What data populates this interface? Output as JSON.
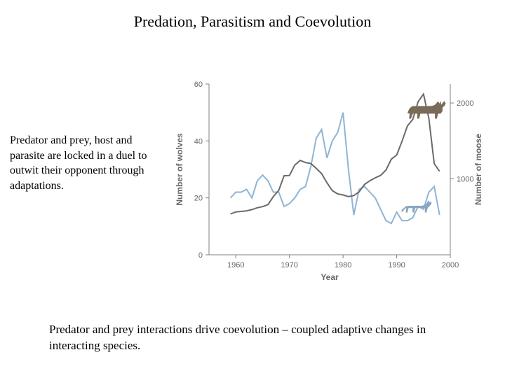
{
  "title": "Predation, Parasitism and Coevolution",
  "side_text": "Predator and prey, host and parasite are locked in a duel to outwit their opponent through adaptations.",
  "bottom_text": "Predator and prey interactions drive coevolution – coupled adaptive changes in interacting species.",
  "chart": {
    "type": "line",
    "background_color": "#ffffff",
    "grid_color": "#d0d0d0",
    "x_axis": {
      "label": "Year",
      "xlim": [
        1955,
        2000
      ],
      "ticks": [
        1960,
        1970,
        1980,
        1990,
        2000
      ],
      "tick_labels": [
        "1960",
        "1970",
        "1980",
        "1990",
        "2000"
      ],
      "label_fontsize": 12,
      "tick_fontsize": 11
    },
    "y_axis_left": {
      "label": "Number of wolves",
      "ylim": [
        0,
        60
      ],
      "ticks": [
        0,
        20,
        40,
        60
      ],
      "tick_labels": [
        "0",
        "20",
        "40",
        "60"
      ],
      "label_fontsize": 12,
      "tick_fontsize": 11
    },
    "y_axis_right": {
      "label": "Number of moose",
      "ylim": [
        0,
        2250
      ],
      "ticks": [
        1000,
        2000
      ],
      "tick_labels": [
        "1000",
        "2000"
      ],
      "label_fontsize": 12,
      "tick_fontsize": 11
    },
    "series": [
      {
        "name": "wolves",
        "axis": "left",
        "color": "#8fb4d5",
        "line_width": 2,
        "x": [
          1959,
          1960,
          1961,
          1962,
          1963,
          1964,
          1965,
          1966,
          1967,
          1968,
          1969,
          1970,
          1971,
          1972,
          1973,
          1974,
          1975,
          1976,
          1977,
          1978,
          1979,
          1980,
          1981,
          1982,
          1983,
          1984,
          1985,
          1986,
          1987,
          1988,
          1989,
          1990,
          1991,
          1992,
          1993,
          1994,
          1995,
          1996,
          1997,
          1998
        ],
        "y": [
          20,
          22,
          22,
          23,
          20,
          26,
          28,
          26,
          22,
          22,
          17,
          18,
          20,
          23,
          24,
          31,
          41,
          44,
          34,
          40,
          43,
          50,
          30,
          14,
          23,
          24,
          22,
          20,
          16,
          12,
          11,
          15,
          12,
          12,
          13,
          17,
          16,
          22,
          24,
          14
        ]
      },
      {
        "name": "moose",
        "axis": "right",
        "color": "#6a6a6a",
        "line_width": 2,
        "x": [
          1959,
          1960,
          1961,
          1962,
          1963,
          1964,
          1965,
          1966,
          1967,
          1968,
          1969,
          1970,
          1971,
          1972,
          1973,
          1974,
          1975,
          1976,
          1977,
          1978,
          1979,
          1980,
          1981,
          1982,
          1983,
          1984,
          1985,
          1986,
          1987,
          1988,
          1989,
          1990,
          1991,
          1992,
          1993,
          1994,
          1995,
          1996,
          1997,
          1998
        ],
        "y": [
          538,
          564,
          572,
          579,
          596,
          620,
          634,
          661,
          766,
          848,
          1041,
          1045,
          1183,
          1243,
          1215,
          1203,
          1139,
          1070,
          949,
          845,
          802,
          788,
          767,
          780,
          830,
          927,
          976,
          1014,
          1046,
          1116,
          1260,
          1315,
          1496,
          1697,
          1784,
          2017,
          2117,
          1800,
          1200,
          1100
        ]
      }
    ],
    "illustrations": [
      {
        "name": "moose-silhouette",
        "approx_x": 1996,
        "approx_y_axis": "right",
        "approx_y": 1950,
        "color": "#7a6a58"
      },
      {
        "name": "wolf-silhouette",
        "approx_x": 1994,
        "approx_y_axis": "left",
        "approx_y": 18,
        "color": "#8aa6c2"
      }
    ]
  }
}
